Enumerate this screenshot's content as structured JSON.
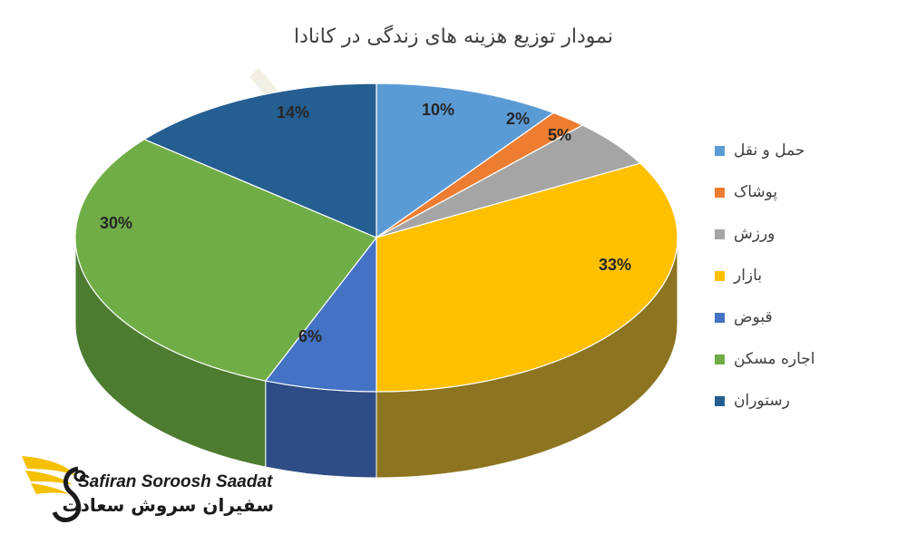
{
  "chart_data": {
    "type": "pie",
    "title": "نمودار توزیع هزینه های زندگی در کانادا",
    "legend_position": "right",
    "slices": [
      {
        "label": "حمل و نقل",
        "value": 10,
        "value_label": "10%",
        "color": "#5B9BD5",
        "side_color": "#3E6E9C"
      },
      {
        "label": "پوشاک",
        "value": 2,
        "value_label": "2%",
        "color": "#ED7D31",
        "side_color": "#A85A24"
      },
      {
        "label": "ورزش",
        "value": 5,
        "value_label": "5%",
        "color": "#A5A5A5",
        "side_color": "#767676"
      },
      {
        "label": "بازار",
        "value": 33,
        "value_label": "33%",
        "color": "#FFC000",
        "side_color": "#8C7420"
      },
      {
        "label": "قبوض",
        "value": 6,
        "value_label": "6%",
        "color": "#4472C4",
        "side_color": "#2E4C86"
      },
      {
        "label": "اجاره مسکن",
        "value": 30,
        "value_label": "30%",
        "color": "#70AD47",
        "side_color": "#4D7C31"
      },
      {
        "label": "رستوران",
        "value": 14,
        "value_label": "14%",
        "color": "#255E91",
        "side_color": "#1A4468"
      }
    ]
  },
  "brand": {
    "name_en": "Safiran Soroosh Saadat",
    "name_fa": "سفیران سروش سعادت",
    "logo_icon": "wing-s-logo-icon",
    "colors": {
      "wing": "#F5C000",
      "text": "#1a1a1a"
    }
  }
}
